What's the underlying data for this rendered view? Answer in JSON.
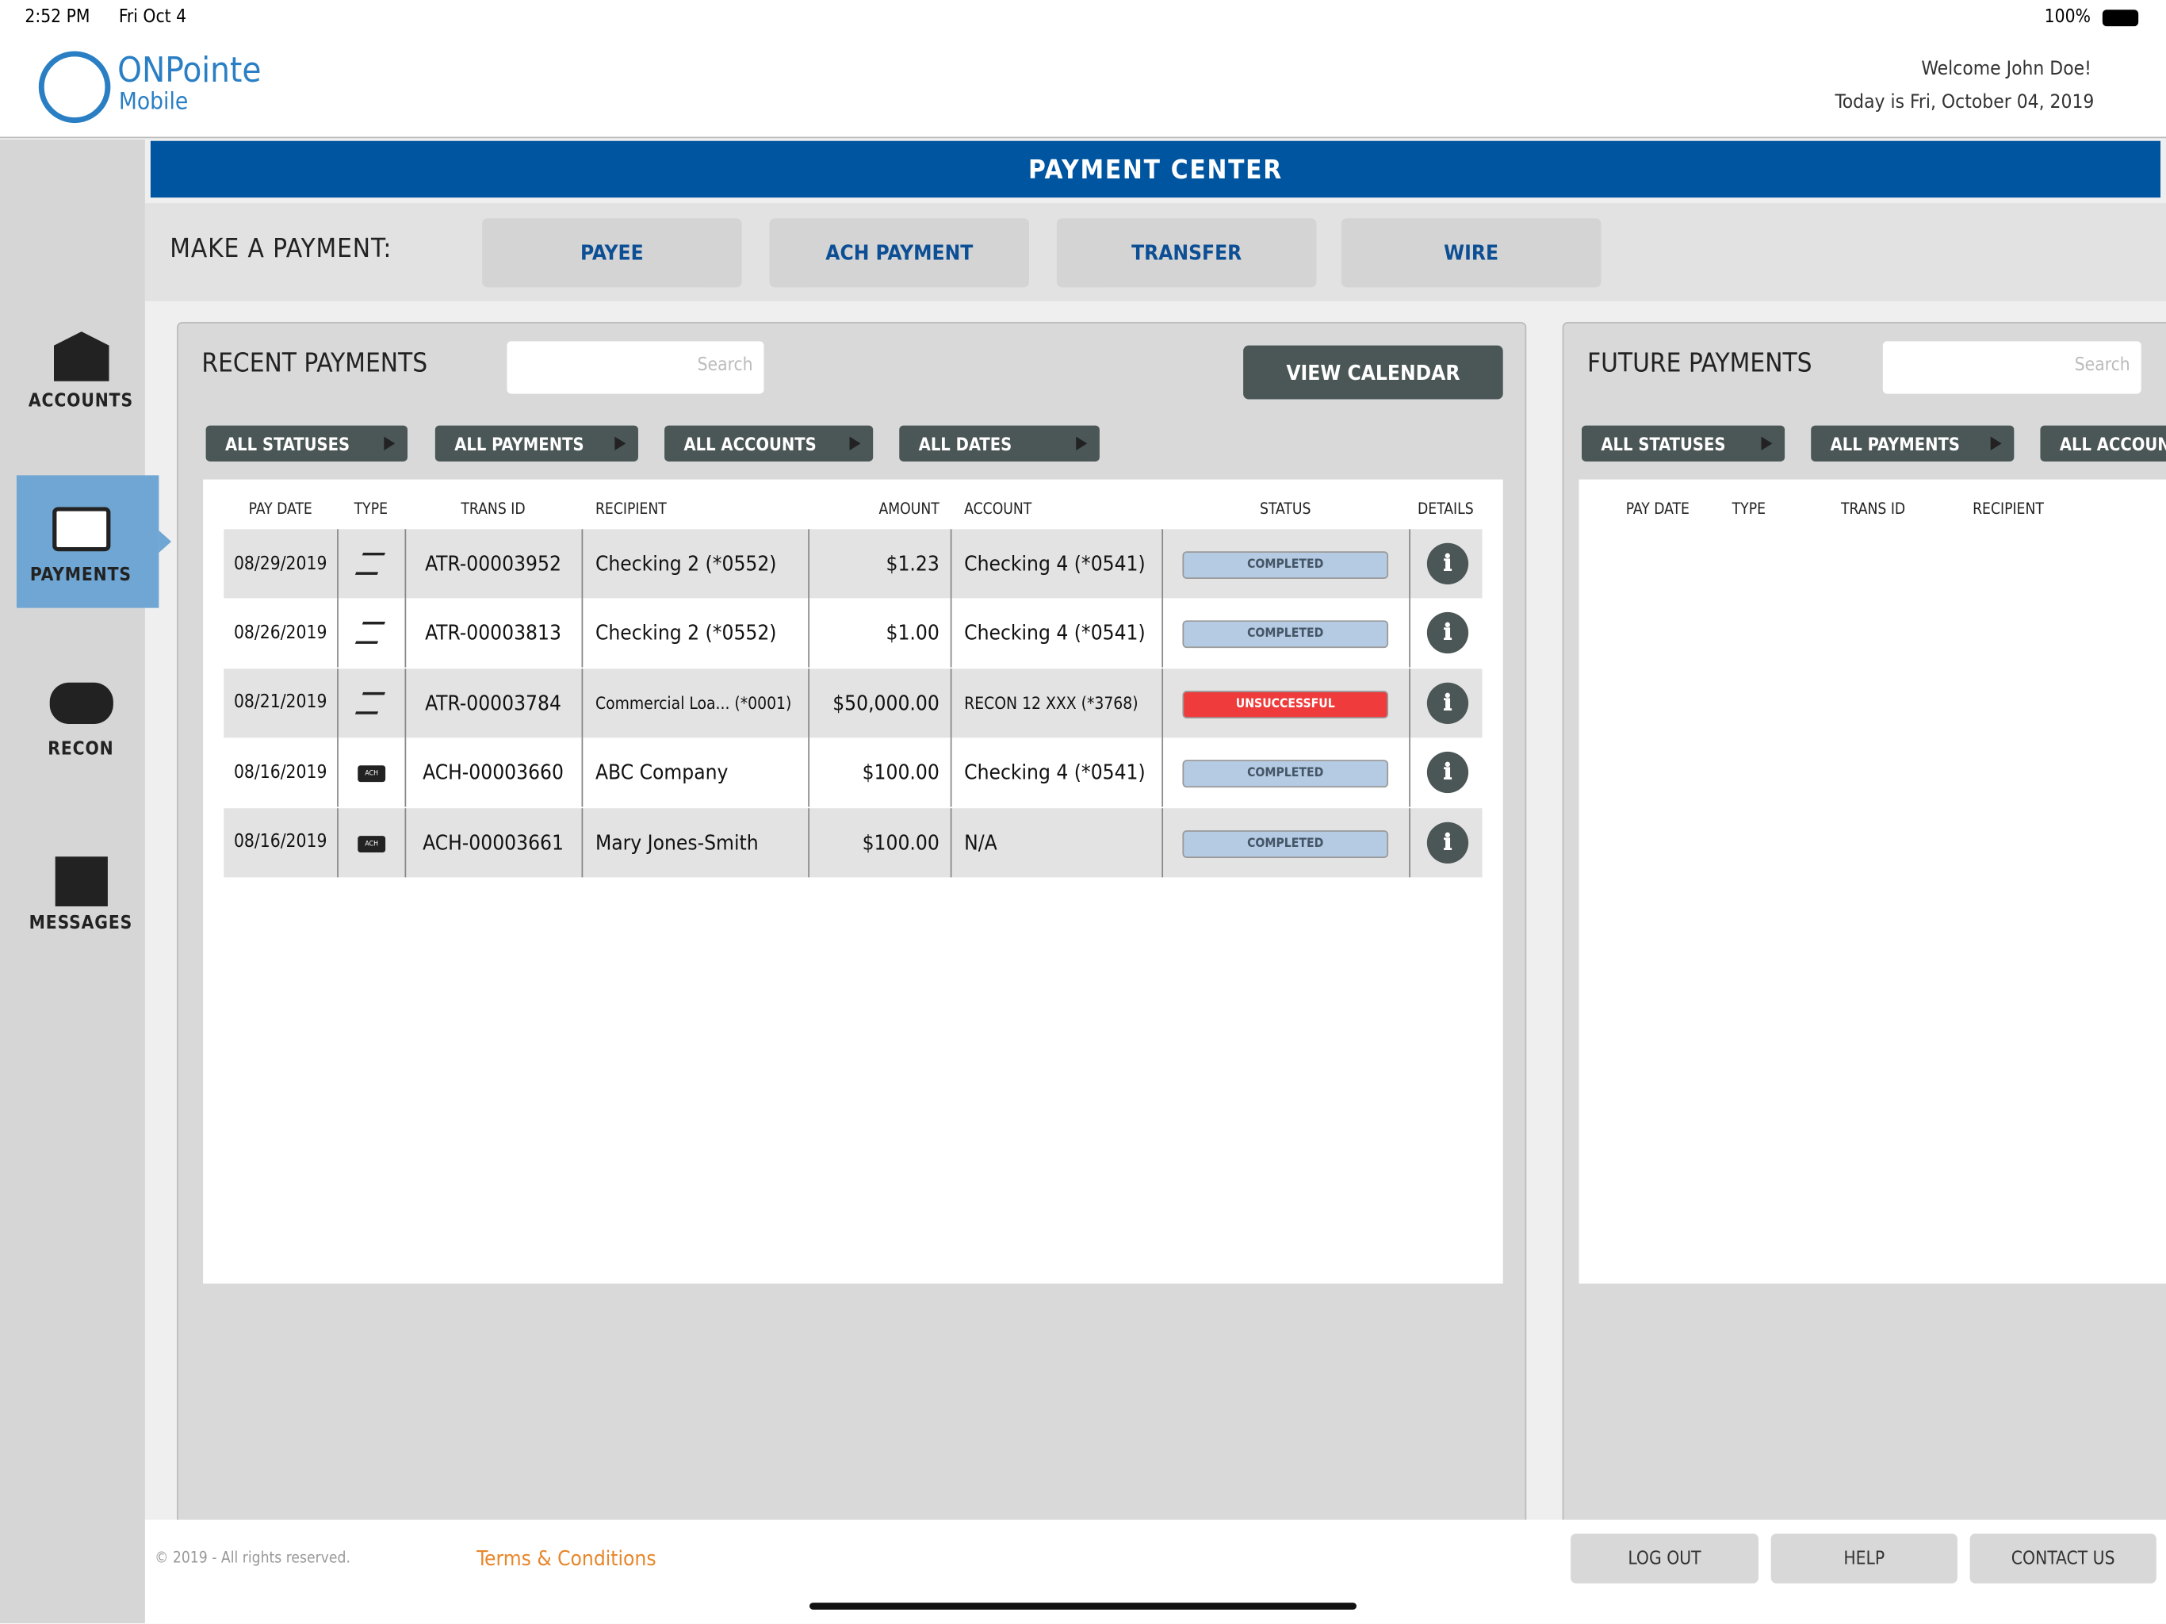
{
  "status_bar": {
    "time": "2:52 PM",
    "date": "Fri Oct 4",
    "battery": "100%"
  },
  "header": {
    "logo_main": "ONPointe",
    "logo_sub": "Mobile",
    "welcome": "Welcome John Doe!",
    "today": "Today is Fri, October 04, 2019"
  },
  "sidebar": [
    "ACCOUNTS",
    "PAYMENTS",
    "RECON",
    "MESSAGES"
  ],
  "title": "PAYMENT CENTER",
  "make_payment": {
    "label": "MAKE A PAYMENT:",
    "buttons": [
      "PAYEE",
      "ACH PAYMENT",
      "TRANSFER",
      "WIRE"
    ]
  },
  "recent": {
    "title": "RECENT PAYMENTS",
    "search": "Search",
    "calendar": "VIEW CALENDAR",
    "filters": [
      "ALL STATUSES",
      "ALL PAYMENTS",
      "ALL ACCOUNTS",
      "ALL DATES"
    ],
    "columns": [
      "PAY DATE",
      "TYPE",
      "TRANS ID",
      "RECIPIENT",
      "AMOUNT",
      "ACCOUNT",
      "STATUS",
      "DETAILS"
    ],
    "rows": [
      [
        "08/29/2019",
        null,
        "ATR-00003952",
        "Checking 2 (*0552)",
        "$1.23",
        "Checking 4 (*0541)",
        "COMPLETED"
      ],
      [
        "08/26/2019",
        null,
        "ATR-00003813",
        "Checking 2 (*0552)",
        "$1.00",
        "Checking 4 (*0541)",
        "COMPLETED"
      ],
      [
        "08/21/2019",
        null,
        "ATR-00003784",
        "Commercial Loa... (*0001)",
        "$50,000.00",
        "RECON 12  XXX (*3768)",
        "UNSUCCESSFUL"
      ],
      [
        "08/16/2019",
        "ACH",
        "ACH-00003660",
        "ABC Company",
        "$100.00",
        "Checking 4 (*0541)",
        "COMPLETED"
      ],
      [
        "08/16/2019",
        "ACH",
        "ACH-00003661",
        "Mary Jones-Smith",
        "$100.00",
        "N/A",
        "COMPLETED"
      ]
    ]
  },
  "future": {
    "title": "FUTURE PAYMENTS",
    "search": "Search",
    "filters": [
      "ALL STATUSES",
      "ALL PAYMENTS",
      "ALL ACCOUNTS"
    ],
    "columns": [
      "PAY DATE",
      "TYPE",
      "TRANS ID",
      "RECIPIENT"
    ]
  },
  "footer": {
    "copyright": "© 2019 - All rights reserved.",
    "terms": "Terms & Conditions",
    "buttons": [
      "LOG OUT",
      "HELP",
      "CONTACT US"
    ]
  }
}
